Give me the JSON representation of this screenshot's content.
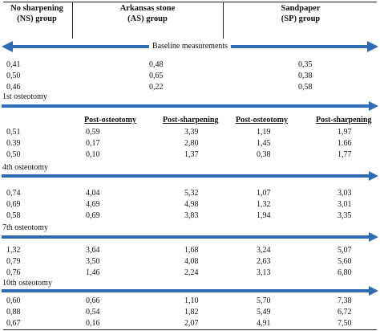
{
  "arrow_color": "#2f6cb5",
  "headers": [
    {
      "line1": "No sharpening",
      "line2": "(NS) group"
    },
    {
      "line1": "Arkansas stone",
      "line2": "(AS) group"
    },
    {
      "line1": "Sandpaper",
      "line2": "(SP) group"
    }
  ],
  "baseline_label": "Baseline measurements",
  "baseline_rows": [
    {
      "ns": "0,41",
      "as": "0,48",
      "sp": "0,35"
    },
    {
      "ns": "0,50",
      "as": "0,65",
      "sp": "0,38"
    },
    {
      "ns": "0,46",
      "as": "0,22",
      "sp": "0,58"
    }
  ],
  "subheaders": {
    "as_post_osteotomy": "Post-osteotomy",
    "as_post_sharpening": "Post-sharpening",
    "sp_post_osteotomy": "Post-osteotomy",
    "sp_post_sharpening": "Post-sharpening"
  },
  "sections": [
    {
      "label": "1st osteotomy",
      "rows": [
        {
          "ns": "0,51",
          "as_po": "0,59",
          "as_ps": "3,39",
          "sp_po": "1,19",
          "sp_ps": "1,97"
        },
        {
          "ns": "0.39",
          "as_po": "0,17",
          "as_ps": "2,80",
          "sp_po": "1,45",
          "sp_ps": "1.66"
        },
        {
          "ns": "0,50",
          "as_po": "0,10",
          "as_ps": "1,37",
          "sp_po": "0,38",
          "sp_ps": "1,77"
        }
      ]
    },
    {
      "label": "4th osteotomy",
      "rows": [
        {
          "ns": "0,74",
          "as_po": "4,04",
          "as_ps": "5,32",
          "sp_po": "1,07",
          "sp_ps": "3,03"
        },
        {
          "ns": "0,69",
          "as_po": "4,69",
          "as_ps": "4,98",
          "sp_po": "1,32",
          "sp_ps": "3,01"
        },
        {
          "ns": "0,58",
          "as_po": "0,69",
          "as_ps": "3,83",
          "sp_po": "1,94",
          "sp_ps": "3,35"
        }
      ]
    },
    {
      "label": "7th osteotomy",
      "rows": [
        {
          "ns": "1,32",
          "as_po": "3,64",
          "as_ps": "1,68",
          "sp_po": "3,24",
          "sp_ps": "5,07"
        },
        {
          "ns": "0,79",
          "as_po": "3,50",
          "as_ps": "4,08",
          "sp_po": "2,63",
          "sp_ps": "5,60"
        },
        {
          "ns": "0,76",
          "as_po": "1,46",
          "as_ps": "2,24",
          "sp_po": "3,13",
          "sp_ps": "6,80"
        }
      ]
    },
    {
      "label": "10th osteotomy",
      "rows": [
        {
          "ns": "0,60",
          "as_po": "0,66",
          "as_ps": "1,10",
          "sp_po": "5,70",
          "sp_ps": "7,38"
        },
        {
          "ns": "0,88",
          "as_po": "0,54",
          "as_ps": "1,82",
          "sp_po": "5,49",
          "sp_ps": "6,72"
        },
        {
          "ns": "0,67",
          "as_po": "0,16",
          "as_ps": "2,07",
          "sp_po": "4,91",
          "sp_ps": "7,50"
        }
      ]
    }
  ]
}
